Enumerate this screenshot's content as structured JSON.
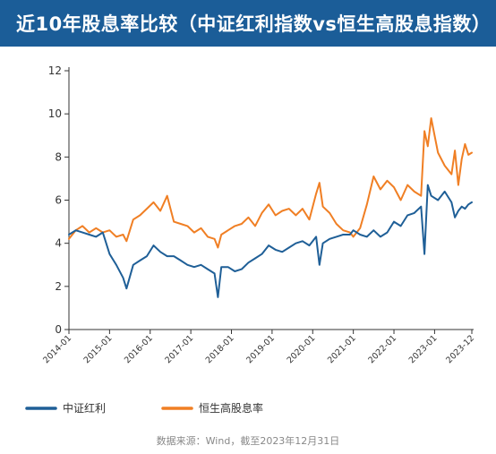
{
  "header": {
    "title": "近10年股息率比较（中证红利指数vs恒生高股息指数）"
  },
  "colors": {
    "title_bg": "#1b5d98",
    "series_blue": "#1f5f97",
    "series_orange": "#f07f24",
    "axis": "#333333",
    "text": "#333333"
  },
  "footer": {
    "source": "数据来源：Wind，截至2023年12月31日"
  },
  "chart_data": {
    "type": "line",
    "title": "近10年股息率比较（中证红利指数vs恒生高股息指数）",
    "xlabel": "",
    "ylabel": "",
    "x_domain": [
      "2014-01",
      "2023-12"
    ],
    "ylim": [
      0,
      12
    ],
    "yticks": [
      0,
      2,
      4,
      6,
      8,
      10,
      12
    ],
    "xticks": [
      "2014-01",
      "2015-01",
      "2016-01",
      "2017-01",
      "2018-01",
      "2019-01",
      "2020-01",
      "2021-01",
      "2022-01",
      "2023-01",
      "2023-12"
    ],
    "grid": false,
    "legend_position": "bottom",
    "series": [
      {
        "name": "中证红利",
        "color": "#1f5f97",
        "x": [
          "2014-01",
          "2014-03",
          "2014-05",
          "2014-07",
          "2014-09",
          "2014-11",
          "2015-01",
          "2015-03",
          "2015-05",
          "2015-06",
          "2015-08",
          "2015-10",
          "2015-12",
          "2016-02",
          "2016-04",
          "2016-06",
          "2016-08",
          "2016-10",
          "2016-12",
          "2017-02",
          "2017-04",
          "2017-06",
          "2017-08",
          "2017-09",
          "2017-10",
          "2017-12",
          "2018-02",
          "2018-04",
          "2018-06",
          "2018-08",
          "2018-10",
          "2018-12",
          "2019-02",
          "2019-04",
          "2019-06",
          "2019-08",
          "2019-10",
          "2019-12",
          "2020-02",
          "2020-03",
          "2020-04",
          "2020-06",
          "2020-08",
          "2020-10",
          "2020-12",
          "2021-01",
          "2021-03",
          "2021-05",
          "2021-07",
          "2021-09",
          "2021-11",
          "2022-01",
          "2022-03",
          "2022-05",
          "2022-07",
          "2022-09",
          "2022-10",
          "2022-11",
          "2022-12",
          "2023-02",
          "2023-04",
          "2023-06",
          "2023-07",
          "2023-08",
          "2023-09",
          "2023-10",
          "2023-11",
          "2023-12"
        ],
        "values": [
          4.4,
          4.6,
          4.5,
          4.4,
          4.3,
          4.5,
          3.5,
          3.0,
          2.4,
          1.9,
          3.0,
          3.2,
          3.4,
          3.9,
          3.6,
          3.4,
          3.4,
          3.2,
          3.0,
          2.9,
          3.0,
          2.8,
          2.6,
          1.5,
          2.9,
          2.9,
          2.7,
          2.8,
          3.1,
          3.3,
          3.5,
          3.9,
          3.7,
          3.6,
          3.8,
          4.0,
          4.1,
          3.9,
          4.3,
          3.0,
          4.0,
          4.2,
          4.3,
          4.4,
          4.4,
          4.6,
          4.4,
          4.3,
          4.6,
          4.3,
          4.5,
          5.0,
          4.8,
          5.3,
          5.4,
          5.7,
          3.5,
          6.7,
          6.2,
          6.0,
          6.4,
          5.9,
          5.2,
          5.5,
          5.7,
          5.6,
          5.8,
          5.9
        ]
      },
      {
        "name": "恒生高股息率",
        "color": "#f07f24",
        "x": [
          "2014-01",
          "2014-03",
          "2014-05",
          "2014-07",
          "2014-09",
          "2014-11",
          "2015-01",
          "2015-03",
          "2015-05",
          "2015-06",
          "2015-08",
          "2015-10",
          "2015-12",
          "2016-02",
          "2016-04",
          "2016-06",
          "2016-08",
          "2016-10",
          "2016-12",
          "2017-02",
          "2017-04",
          "2017-06",
          "2017-08",
          "2017-09",
          "2017-10",
          "2017-12",
          "2018-02",
          "2018-04",
          "2018-06",
          "2018-08",
          "2018-10",
          "2018-12",
          "2019-02",
          "2019-04",
          "2019-06",
          "2019-08",
          "2019-10",
          "2019-12",
          "2020-02",
          "2020-03",
          "2020-04",
          "2020-06",
          "2020-08",
          "2020-10",
          "2020-12",
          "2021-01",
          "2021-03",
          "2021-05",
          "2021-07",
          "2021-09",
          "2021-11",
          "2022-01",
          "2022-03",
          "2022-05",
          "2022-07",
          "2022-09",
          "2022-10",
          "2022-11",
          "2022-12",
          "2023-02",
          "2023-04",
          "2023-06",
          "2023-07",
          "2023-08",
          "2023-09",
          "2023-10",
          "2023-11",
          "2023-12"
        ],
        "values": [
          4.2,
          4.6,
          4.8,
          4.5,
          4.7,
          4.5,
          4.6,
          4.3,
          4.4,
          4.1,
          5.1,
          5.3,
          5.6,
          5.9,
          5.5,
          6.2,
          5.0,
          4.9,
          4.8,
          4.5,
          4.7,
          4.3,
          4.2,
          3.8,
          4.4,
          4.6,
          4.8,
          4.9,
          5.2,
          4.8,
          5.4,
          5.8,
          5.3,
          5.5,
          5.6,
          5.3,
          5.6,
          5.1,
          6.3,
          6.8,
          5.7,
          5.4,
          4.9,
          4.6,
          4.5,
          4.3,
          4.7,
          5.8,
          7.1,
          6.5,
          6.9,
          6.6,
          6.0,
          6.7,
          6.4,
          6.2,
          9.2,
          8.5,
          9.8,
          8.2,
          7.6,
          7.2,
          8.3,
          6.7,
          7.9,
          8.6,
          8.1,
          8.2
        ]
      }
    ]
  }
}
